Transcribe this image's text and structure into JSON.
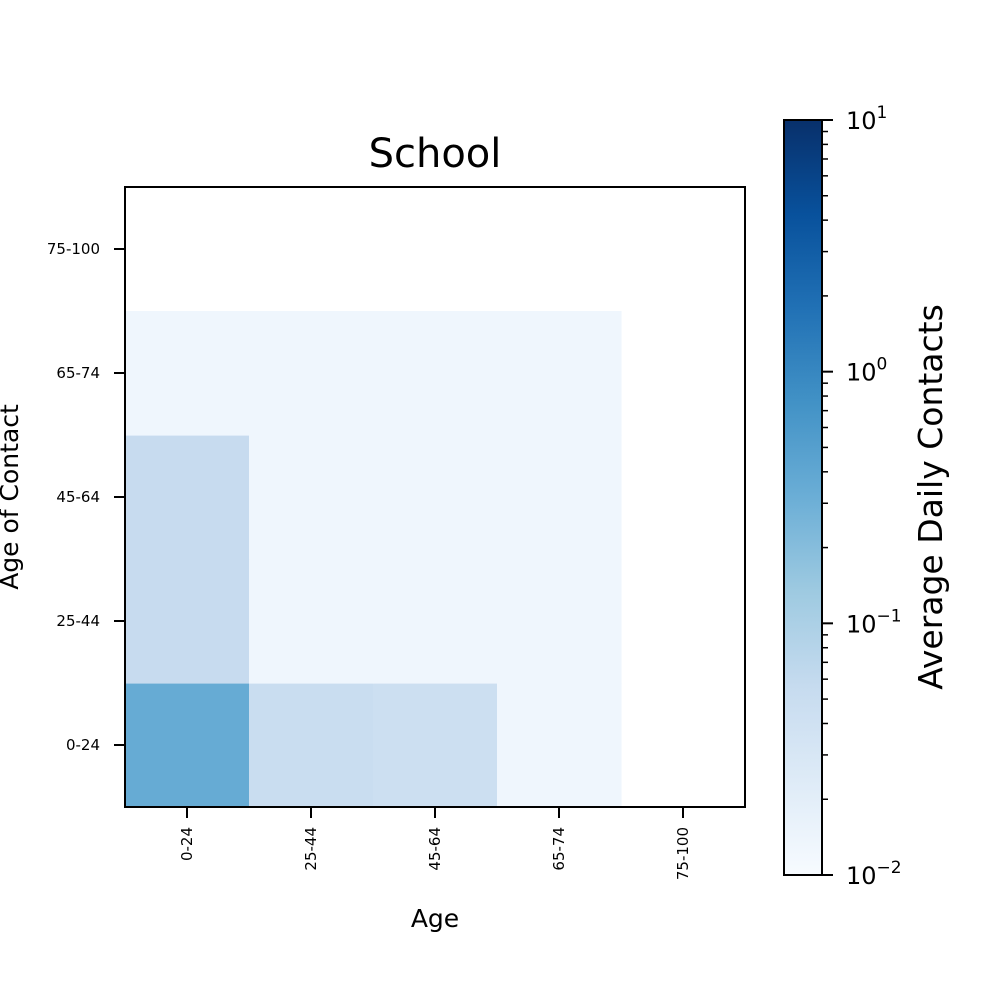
{
  "chart_data": {
    "type": "heatmap",
    "title": "School",
    "xlabel": "Age",
    "ylabel": "Age of Contact",
    "x_categories": [
      "0-24",
      "25-44",
      "45-64",
      "65-74",
      "75-100"
    ],
    "y_categories": [
      "0-24",
      "25-44",
      "45-64",
      "65-74",
      "75-100"
    ],
    "values": [
      [
        0.35,
        0.05,
        0.045,
        0.013,
        null
      ],
      [
        0.055,
        0.013,
        0.013,
        0.013,
        null
      ],
      [
        0.055,
        0.013,
        0.013,
        0.013,
        null
      ],
      [
        0.013,
        0.013,
        0.013,
        0.013,
        null
      ],
      [
        null,
        null,
        null,
        null,
        null
      ]
    ],
    "values_orientation": "values[row][col], row = y category (Age of Contact), col = x category (Age)",
    "colorbar": {
      "label": "Average Daily Contacts",
      "scale": "log",
      "colormap": "Blues",
      "range": [
        0.01,
        10
      ],
      "tick_labels": [
        "10^-2",
        "10^-1",
        "10^0",
        "10^1"
      ]
    }
  }
}
